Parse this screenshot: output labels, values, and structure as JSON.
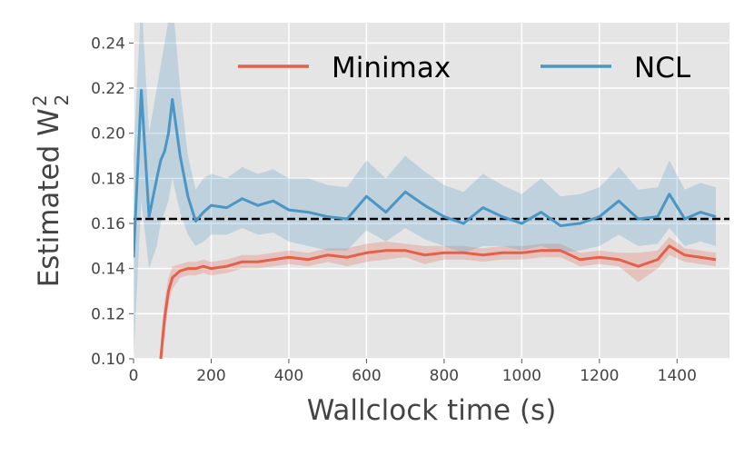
{
  "chart_data": {
    "type": "line",
    "x_label": "Wallclock time (s)",
    "y_label": {
      "text": "Estimated W",
      "sub": "2",
      "sup": "2"
    },
    "x": [
      0,
      20,
      40,
      60,
      70,
      80,
      90,
      100,
      120,
      140,
      160,
      180,
      200,
      240,
      280,
      320,
      360,
      400,
      450,
      500,
      550,
      600,
      650,
      700,
      750,
      800,
      850,
      900,
      950,
      1000,
      1050,
      1100,
      1150,
      1200,
      1250,
      1300,
      1350,
      1380,
      1420,
      1460,
      1500
    ],
    "series": [
      {
        "name": "Minimax",
        "color": "#e5604a",
        "values": [
          null,
          null,
          null,
          null,
          0.1,
          0.118,
          0.13,
          0.136,
          0.139,
          0.14,
          0.14,
          0.141,
          0.14,
          0.141,
          0.143,
          0.143,
          0.144,
          0.145,
          0.144,
          0.146,
          0.145,
          0.147,
          0.148,
          0.148,
          0.146,
          0.147,
          0.147,
          0.146,
          0.147,
          0.147,
          0.148,
          0.148,
          0.144,
          0.145,
          0.144,
          0.141,
          0.144,
          0.15,
          0.146,
          0.145,
          0.144
        ],
        "lower": [
          null,
          null,
          null,
          null,
          0.092,
          0.11,
          0.124,
          0.131,
          0.136,
          0.137,
          0.137,
          0.138,
          0.137,
          0.138,
          0.14,
          0.14,
          0.141,
          0.142,
          0.141,
          0.143,
          0.141,
          0.143,
          0.144,
          0.145,
          0.142,
          0.144,
          0.144,
          0.143,
          0.144,
          0.144,
          0.145,
          0.145,
          0.141,
          0.142,
          0.141,
          0.134,
          0.14,
          0.146,
          0.143,
          0.142,
          0.141
        ],
        "upper": [
          null,
          null,
          null,
          null,
          0.108,
          0.126,
          0.136,
          0.141,
          0.142,
          0.143,
          0.143,
          0.144,
          0.143,
          0.144,
          0.146,
          0.146,
          0.147,
          0.148,
          0.147,
          0.149,
          0.149,
          0.151,
          0.152,
          0.151,
          0.15,
          0.15,
          0.15,
          0.149,
          0.15,
          0.15,
          0.151,
          0.151,
          0.147,
          0.148,
          0.147,
          0.147,
          0.148,
          0.154,
          0.149,
          0.148,
          0.147
        ]
      },
      {
        "name": "NCL",
        "color": "#4c96c4",
        "values": [
          0.145,
          0.219,
          0.163,
          0.18,
          0.188,
          0.192,
          0.2,
          0.215,
          0.19,
          0.172,
          0.161,
          0.165,
          0.168,
          0.167,
          0.171,
          0.168,
          0.17,
          0.166,
          0.165,
          0.163,
          0.162,
          0.172,
          0.165,
          0.174,
          0.168,
          0.163,
          0.16,
          0.167,
          0.163,
          0.16,
          0.165,
          0.159,
          0.16,
          0.163,
          0.17,
          0.162,
          0.163,
          0.173,
          0.162,
          0.165,
          0.163
        ],
        "lower": [
          0.1,
          0.17,
          0.14,
          0.15,
          0.16,
          0.165,
          0.17,
          0.18,
          0.165,
          0.155,
          0.15,
          0.152,
          0.155,
          0.155,
          0.158,
          0.155,
          0.156,
          0.152,
          0.15,
          0.148,
          0.148,
          0.157,
          0.152,
          0.158,
          0.153,
          0.15,
          0.147,
          0.15,
          0.15,
          0.148,
          0.15,
          0.147,
          0.148,
          0.15,
          0.155,
          0.15,
          0.151,
          0.158,
          0.15,
          0.152,
          0.15
        ],
        "upper": [
          0.19,
          0.26,
          0.2,
          0.22,
          0.23,
          0.24,
          0.25,
          0.26,
          0.22,
          0.19,
          0.175,
          0.18,
          0.182,
          0.18,
          0.185,
          0.182,
          0.184,
          0.18,
          0.18,
          0.177,
          0.176,
          0.188,
          0.18,
          0.19,
          0.183,
          0.177,
          0.174,
          0.182,
          0.177,
          0.173,
          0.18,
          0.172,
          0.173,
          0.176,
          0.185,
          0.175,
          0.176,
          0.188,
          0.175,
          0.178,
          0.176
        ]
      }
    ],
    "reference_line": 0.162,
    "xlim": [
      0,
      1535
    ],
    "ylim": [
      0.1,
      0.249
    ],
    "xticks": [
      0,
      200,
      400,
      600,
      800,
      1000,
      1200,
      1400
    ],
    "yticks": [
      {
        "value": 0.1,
        "label": "0.10"
      },
      0.12,
      0.14,
      0.16,
      0.18,
      {
        "value": 0.2,
        "label": "0.20"
      },
      0.22,
      0.24
    ],
    "grid": true,
    "legend": "top"
  }
}
